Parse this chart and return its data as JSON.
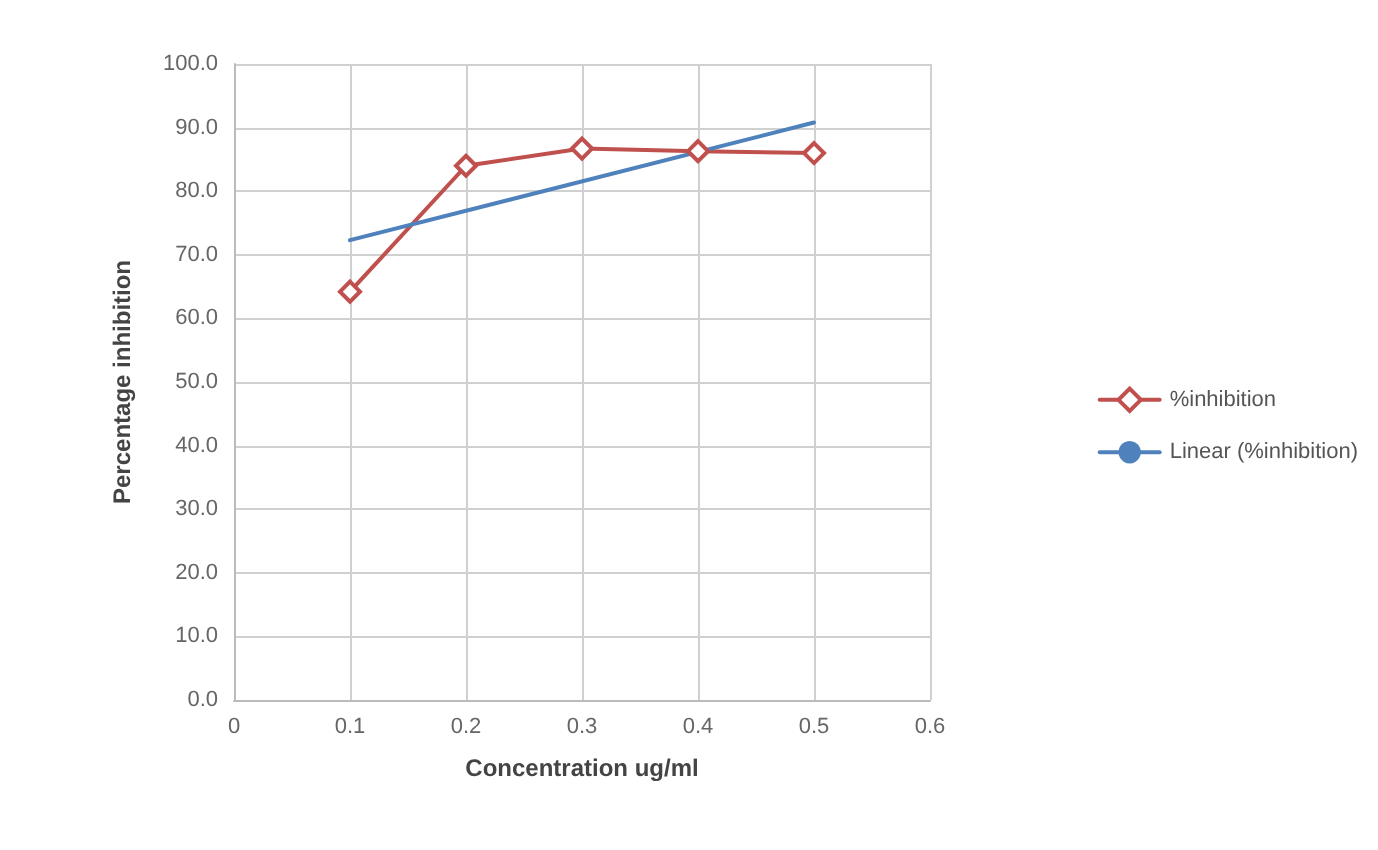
{
  "chart_data": {
    "type": "line",
    "xlabel": "Concentration ug/ml",
    "ylabel": "Percentage inhibition",
    "x": [
      0.1,
      0.2,
      0.3,
      0.4,
      0.5
    ],
    "series": [
      {
        "name": "%inhibition",
        "color": "#c0504d",
        "values": [
          64.2,
          84.0,
          86.7,
          86.3,
          86.0
        ],
        "marker": "diamond"
      },
      {
        "name": "Linear (%inhibition)",
        "color": "#4f81bd",
        "x": [
          0.1,
          0.5
        ],
        "values": [
          72.3,
          90.8
        ],
        "marker": "none"
      }
    ],
    "xlim": [
      0,
      0.6
    ],
    "xticks": [
      0,
      0.1,
      0.2,
      0.3,
      0.4,
      0.5,
      0.6
    ],
    "ylim": [
      0,
      100
    ],
    "yticks": [
      {
        "value": 0,
        "label": "0.0"
      },
      {
        "value": 10,
        "label": "10.0"
      },
      {
        "value": 20,
        "label": "20.0"
      },
      {
        "value": 30,
        "label": "30.0"
      },
      {
        "value": 40,
        "label": "40.0"
      },
      {
        "value": 50,
        "label": "50.0"
      },
      {
        "value": 60,
        "label": "60.0"
      },
      {
        "value": 70,
        "label": "70.0"
      },
      {
        "value": 80,
        "label": "80.0"
      },
      {
        "value": 90,
        "label": "90.0"
      },
      {
        "value": 100,
        "label": "100.0"
      }
    ],
    "grid": true,
    "legend": "right",
    "line_style": "solid"
  }
}
